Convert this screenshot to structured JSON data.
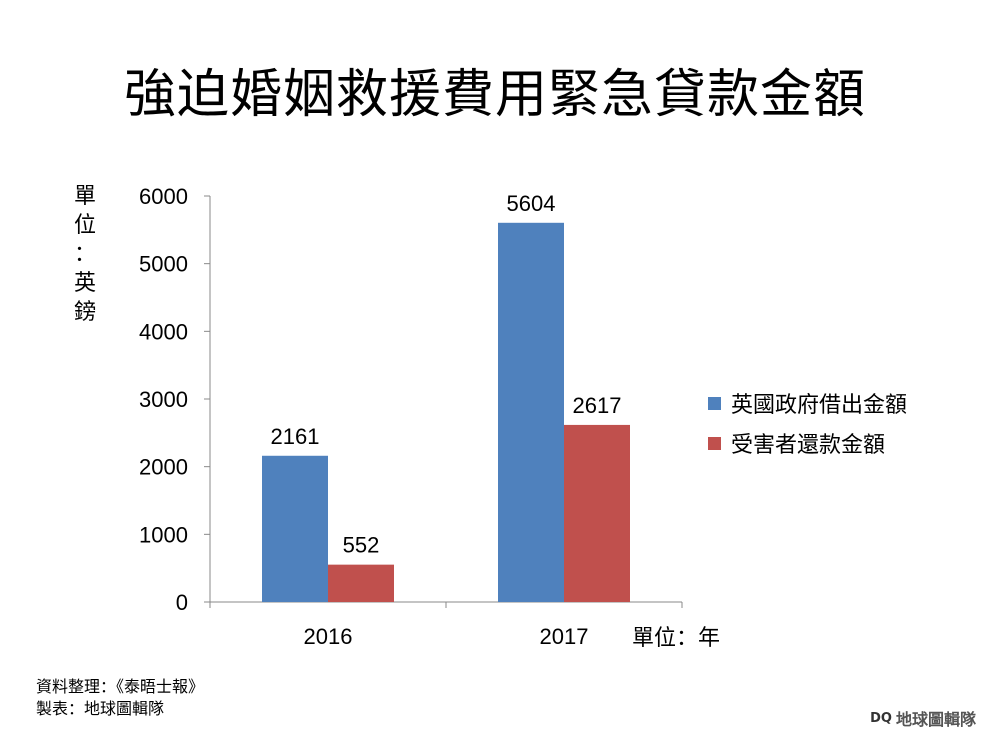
{
  "title": "強迫婚姻救援費用緊急貸款金額",
  "y_unit_chars": [
    "單",
    "位",
    "：",
    "英",
    "鎊"
  ],
  "x_unit": "單位：年",
  "source_lines": [
    "資料整理：《泰晤士報》",
    "製表：地球圖輯隊"
  ],
  "watermark": {
    "logo": "DQ",
    "text": "地球圖輯隊"
  },
  "colors": {
    "series1": "#4f81bd",
    "series2": "#c0504d",
    "axis": "#888888"
  },
  "chart_data": {
    "type": "bar",
    "categories": [
      "2016",
      "2017"
    ],
    "series": [
      {
        "name": "英國政府借出金額",
        "values": [
          2161,
          5604
        ]
      },
      {
        "name": "受害者還款金額",
        "values": [
          552,
          2617
        ]
      }
    ],
    "ylim": [
      0,
      6000
    ],
    "yticks": [
      "0",
      "1000",
      "2000",
      "3000",
      "4000",
      "5000",
      "6000"
    ],
    "data_labels": true,
    "legend": "right",
    "grid": false
  }
}
